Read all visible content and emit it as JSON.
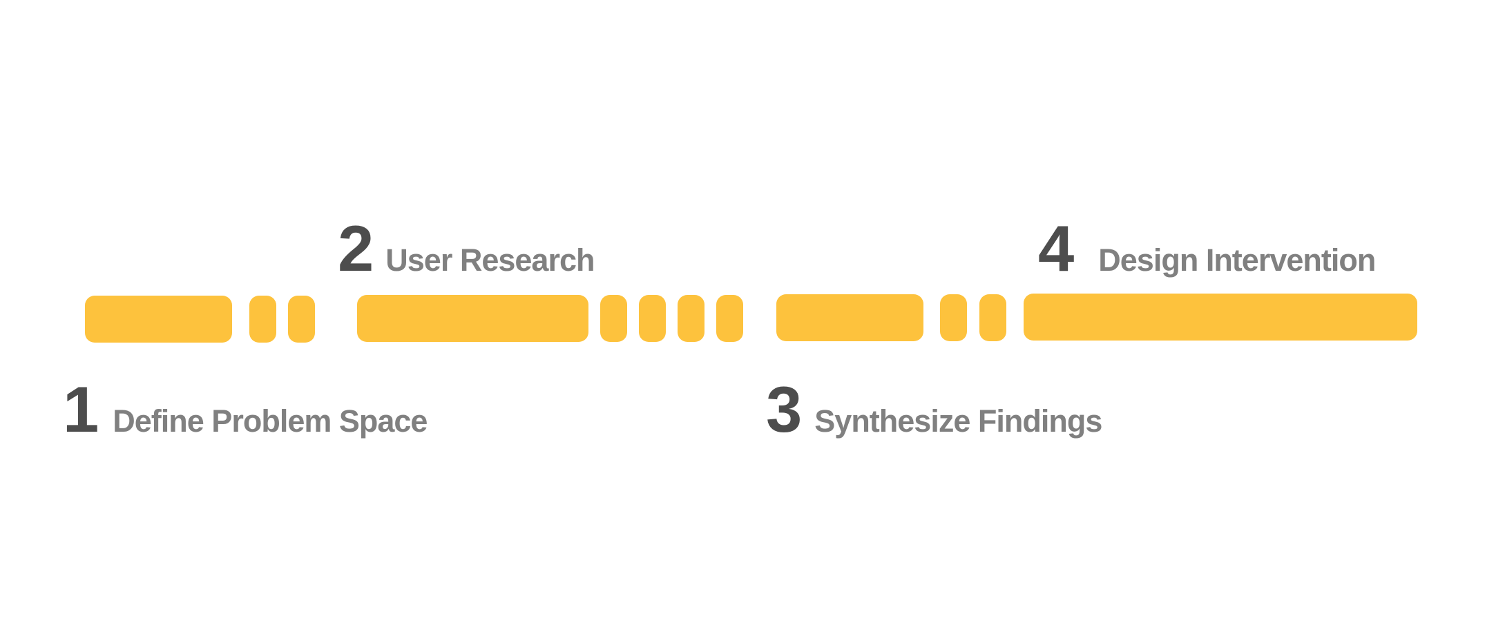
{
  "colors": {
    "bar": "#FDC23D",
    "number": "#4D4D4D",
    "label": "#808080",
    "background": "#FFFFFF"
  },
  "steps": [
    {
      "number": "1",
      "label": "Define Problem Space"
    },
    {
      "number": "2",
      "label": "User Research"
    },
    {
      "number": "3",
      "label": "Synthesize Findings"
    },
    {
      "number": "4",
      "label": "Design Intervention"
    }
  ]
}
